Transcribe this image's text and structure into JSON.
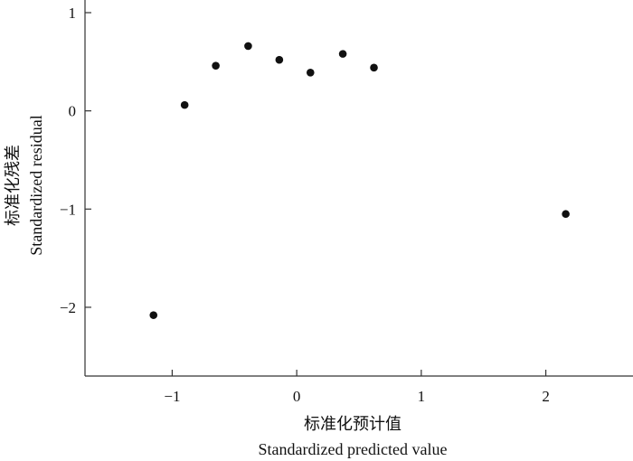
{
  "chart_data": {
    "type": "scatter",
    "title": "",
    "xlabel_cn": "标准化预计值",
    "xlabel": "Standardized predicted value",
    "ylabel_cn": "标准化残差",
    "ylabel": "Standardized residual",
    "xlim": [
      -1.7,
      2.7
    ],
    "ylim": [
      -2.7,
      1.0
    ],
    "x_ticks": [
      -1,
      0,
      1,
      2
    ],
    "y_ticks": [
      -2,
      -1,
      0,
      1
    ],
    "x_tick_labels": [
      "−1",
      "0",
      "1",
      "2"
    ],
    "y_tick_labels": [
      "−2",
      "−1",
      "0",
      "1"
    ],
    "grid": false,
    "marker_color": "#111111",
    "points": [
      {
        "x": -1.15,
        "y": -2.08
      },
      {
        "x": -0.9,
        "y": 0.06
      },
      {
        "x": -0.65,
        "y": 0.46
      },
      {
        "x": -0.39,
        "y": 0.66
      },
      {
        "x": -0.14,
        "y": 0.52
      },
      {
        "x": 0.11,
        "y": 0.39
      },
      {
        "x": 0.37,
        "y": 0.58
      },
      {
        "x": 0.62,
        "y": 0.44
      },
      {
        "x": 2.16,
        "y": -1.05
      }
    ]
  }
}
